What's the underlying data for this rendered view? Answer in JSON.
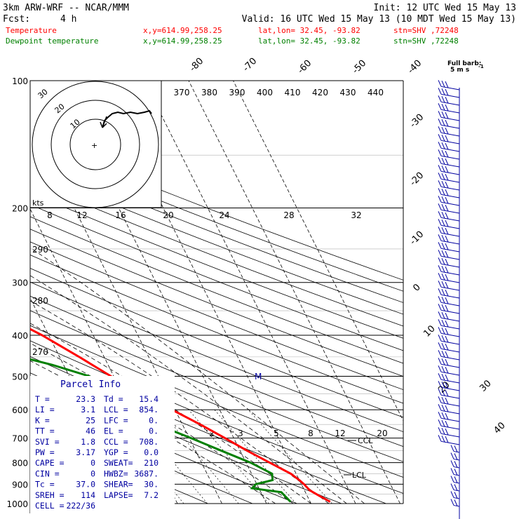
{
  "header": {
    "model": "3km ARW-WRF -- NCAR/MMM",
    "init": "Init: 12 UTC Wed 15 May 13",
    "fcst_label": "Fcst:",
    "fcst_value": "4 h",
    "valid": "Valid: 16 UTC Wed 15 May 13 (10 MDT Wed 15 May 13)"
  },
  "legend": [
    {
      "name": "Temperature",
      "color": "#ff0000",
      "xy": "x,y=614.99,258.25",
      "latlon": "lat,lon= 32.45, -93.82",
      "stn": "stn=SHV ,72248"
    },
    {
      "name": "Dewpoint temperature",
      "color": "#008000",
      "xy": "x,y=614.99,258.25",
      "latlon": "lat,lon= 32.45, -93.82",
      "stn": "stn=SHV ,72248"
    }
  ],
  "barb_legend": {
    "line1": "Full barb:",
    "line2": "5 m s"
  },
  "hodograph": {
    "units": "kts",
    "rings": [
      "10",
      "20",
      "30"
    ]
  },
  "parcel_info": {
    "title": "Parcel Info",
    "rows": [
      {
        "l1": "T  =",
        "v1": "23.3",
        "l2": "Td =",
        "v2": "15.4"
      },
      {
        "l1": "LI =",
        "v1": "3.1",
        "l2": "LCL =",
        "v2": "854."
      },
      {
        "l1": "K  =",
        "v1": "25",
        "l2": "LFC =",
        "v2": "0."
      },
      {
        "l1": "TT =",
        "v1": "46",
        "l2": "EL  =",
        "v2": "0."
      },
      {
        "l1": "SVI =",
        "v1": "1.8",
        "l2": "CCL =",
        "v2": "708."
      },
      {
        "l1": "PW =",
        "v1": "3.17",
        "l2": "YGP =",
        "v2": "0.0"
      },
      {
        "l1": "CAPE =",
        "v1": "0",
        "l2": "SWEAT=",
        "v2": "210"
      },
      {
        "l1": "CIN =",
        "v1": "0",
        "l2": "HWBZ=",
        "v2": "3687."
      },
      {
        "l1": "Tc =",
        "v1": "37.0",
        "l2": "SHEAR=",
        "v2": "30."
      },
      {
        "l1": "SREH =",
        "v1": "114",
        "l2": "LAPSE=",
        "v2": "7.2"
      },
      {
        "l1": "CELL =",
        "v1": "222/36",
        "l2": "",
        "v2": ""
      }
    ]
  },
  "labels": {
    "m_marker": "M",
    "ccl": "CCL",
    "lcl": "LCL"
  },
  "colors": {
    "temperature": "#ff0000",
    "dewpoint": "#008000",
    "isotherm": "#000000",
    "mixing_ratio": "#000000",
    "barbs": "#0000a0",
    "text": "#000000"
  },
  "chart_data": {
    "type": "line",
    "title": "",
    "xlabel": "",
    "ylabel": "",
    "y_scale": "log-pressure",
    "ylim": [
      1000,
      100
    ],
    "pressure_levels": [
      100,
      200,
      300,
      400,
      500,
      600,
      700,
      800,
      900,
      1000
    ],
    "isotherm_labels": [
      "-80",
      "-70",
      "-60",
      "-50",
      "-40",
      "-30",
      "-20",
      "-10",
      "0",
      "10",
      "20",
      "30",
      "40"
    ],
    "theta_e_labels": [
      "370",
      "380",
      "390",
      "400",
      "410",
      "420",
      "430",
      "440"
    ],
    "mixing_ratio_labels_upper": [
      "8",
      "12",
      "16",
      "20",
      "24",
      "28",
      "32"
    ],
    "mixing_ratio_labels_lower": [
      "2",
      "3",
      "5",
      "8",
      "12",
      "20"
    ],
    "adiabat_labels": [
      "290",
      "280",
      "270"
    ],
    "series": [
      {
        "name": "Temperature",
        "pressure": [
          990,
          960,
          930,
          900,
          880,
          850,
          800,
          750,
          700,
          650,
          600,
          550,
          500,
          450,
          400,
          350,
          300,
          250,
          200,
          180,
          150,
          120,
          100
        ],
        "values": [
          24.5,
          22.8,
          21.2,
          20.6,
          20.0,
          18.8,
          15.3,
          11.6,
          8.0,
          4.0,
          -0.7,
          -6.0,
          -10.6,
          -15.6,
          -21.5,
          -29.3,
          -38.0,
          -48.0,
          -58.5,
          -63.5,
          -68.5,
          -72.0,
          -75.0
        ]
      },
      {
        "name": "Dewpoint temperature",
        "pressure": [
          990,
          960,
          940,
          920,
          900,
          880,
          850,
          800,
          750,
          700,
          650,
          600,
          550,
          500,
          470,
          440,
          400,
          370,
          350,
          320,
          300,
          270,
          250,
          220,
          200,
          180,
          150,
          120,
          100
        ],
        "values": [
          15.6,
          15.0,
          14.6,
          8.5,
          9.8,
          14.0,
          14.6,
          11.0,
          5.8,
          0.4,
          -5.8,
          -13.0,
          -13.0,
          -15.5,
          -22.5,
          -32.0,
          -47.0,
          -47.0,
          -46.0,
          -43.0,
          -44.0,
          -47.0,
          -52.0,
          -60.0,
          -68.0,
          -82.0,
          -84.0,
          -86.0,
          -88.0
        ]
      }
    ]
  }
}
